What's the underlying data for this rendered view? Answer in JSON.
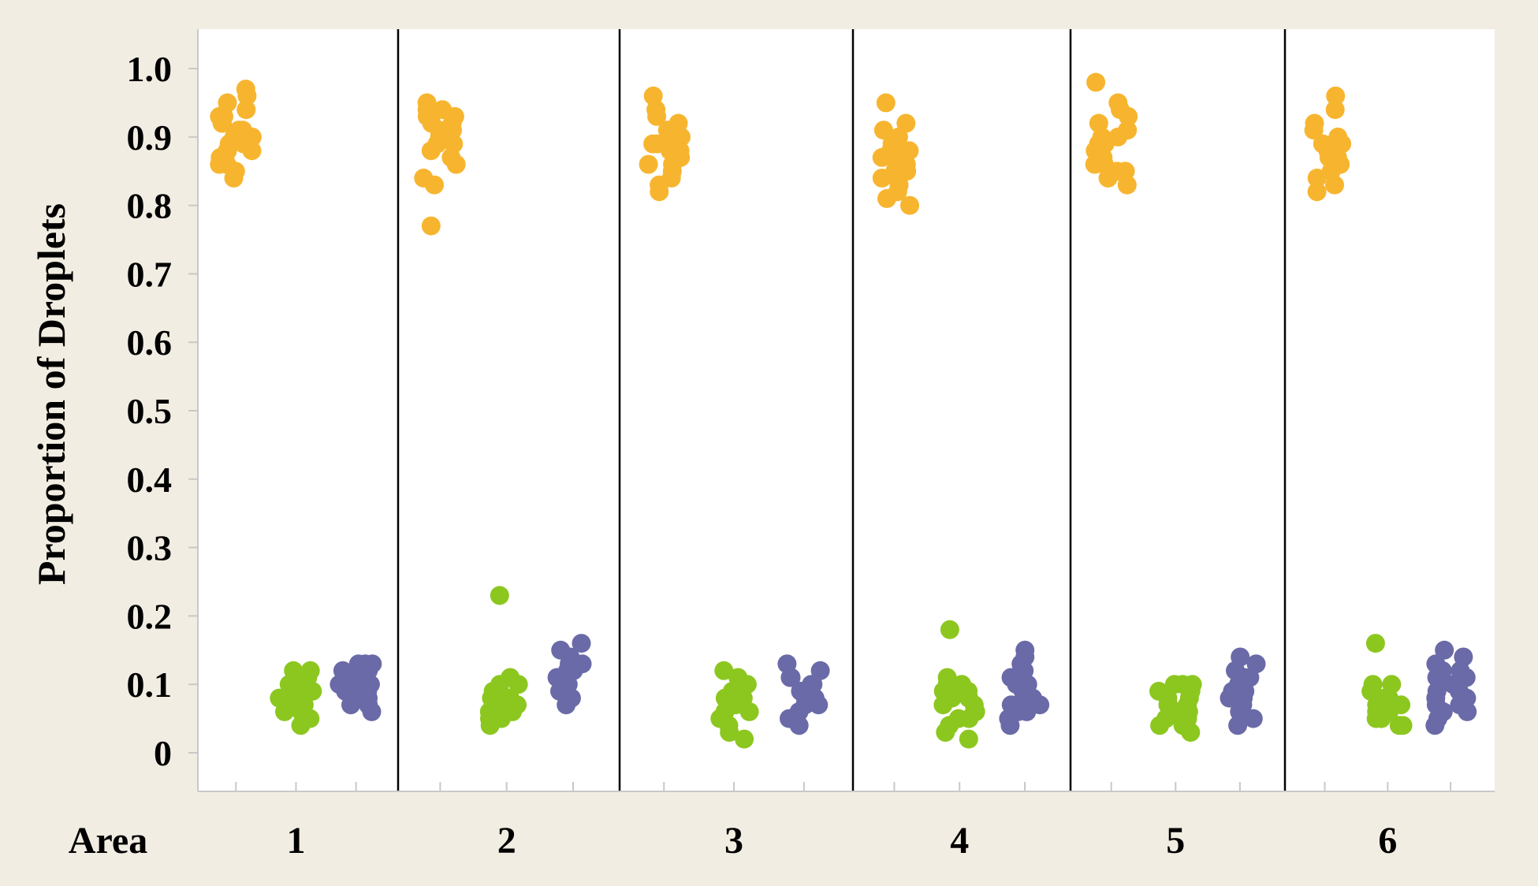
{
  "chart_data": {
    "type": "scatter",
    "title": "",
    "ylabel": "Proportion of Droplets",
    "xlabel": "Area",
    "ylim": [
      -0.06,
      1.06
    ],
    "yticks": [
      "0",
      "0.1",
      "0.2",
      "0.3",
      "0.4",
      "0.5",
      "0.6",
      "0.7",
      "0.8",
      "0.9",
      "1.0"
    ],
    "grid": false,
    "legend": "none",
    "panels": [
      "1",
      "2",
      "3",
      "4",
      "5",
      "6"
    ],
    "groups_per_panel": 3,
    "series": [
      {
        "color": "#f7b52f",
        "group_index": 0,
        "panels": [
          [
            0.84,
            0.85,
            0.86,
            0.86,
            0.87,
            0.87,
            0.88,
            0.88,
            0.88,
            0.89,
            0.89,
            0.9,
            0.9,
            0.9,
            0.91,
            0.91,
            0.92,
            0.92,
            0.93,
            0.93,
            0.94,
            0.95,
            0.96,
            0.97
          ],
          [
            0.77,
            0.83,
            0.84,
            0.86,
            0.87,
            0.88,
            0.89,
            0.89,
            0.9,
            0.9,
            0.91,
            0.91,
            0.92,
            0.92,
            0.93,
            0.93,
            0.94,
            0.94,
            0.95
          ],
          [
            0.82,
            0.83,
            0.84,
            0.85,
            0.86,
            0.86,
            0.87,
            0.87,
            0.88,
            0.88,
            0.89,
            0.89,
            0.9,
            0.9,
            0.91,
            0.91,
            0.92,
            0.93,
            0.94,
            0.96
          ],
          [
            0.8,
            0.81,
            0.82,
            0.83,
            0.84,
            0.85,
            0.85,
            0.86,
            0.86,
            0.87,
            0.87,
            0.88,
            0.88,
            0.89,
            0.9,
            0.91,
            0.92,
            0.95
          ],
          [
            0.83,
            0.84,
            0.85,
            0.85,
            0.86,
            0.86,
            0.87,
            0.87,
            0.88,
            0.88,
            0.89,
            0.89,
            0.9,
            0.9,
            0.91,
            0.92,
            0.93,
            0.94,
            0.95,
            0.98
          ],
          [
            0.82,
            0.83,
            0.84,
            0.85,
            0.86,
            0.86,
            0.87,
            0.87,
            0.88,
            0.88,
            0.89,
            0.89,
            0.9,
            0.91,
            0.92,
            0.94,
            0.96
          ]
        ]
      },
      {
        "color": "#8cc71f",
        "group_index": 1,
        "panels": [
          [
            0.04,
            0.05,
            0.06,
            0.06,
            0.07,
            0.07,
            0.08,
            0.08,
            0.08,
            0.09,
            0.09,
            0.09,
            0.1,
            0.1,
            0.1,
            0.11,
            0.11,
            0.12,
            0.12
          ],
          [
            0.04,
            0.05,
            0.05,
            0.06,
            0.06,
            0.07,
            0.07,
            0.07,
            0.08,
            0.08,
            0.08,
            0.09,
            0.09,
            0.1,
            0.1,
            0.11,
            0.23
          ],
          [
            0.02,
            0.03,
            0.04,
            0.05,
            0.06,
            0.06,
            0.07,
            0.07,
            0.08,
            0.08,
            0.09,
            0.09,
            0.1,
            0.1,
            0.11,
            0.12
          ],
          [
            0.02,
            0.03,
            0.04,
            0.05,
            0.05,
            0.06,
            0.06,
            0.07,
            0.07,
            0.08,
            0.08,
            0.09,
            0.09,
            0.1,
            0.1,
            0.11,
            0.18
          ],
          [
            0.03,
            0.04,
            0.04,
            0.05,
            0.05,
            0.06,
            0.06,
            0.07,
            0.07,
            0.07,
            0.08,
            0.08,
            0.09,
            0.09,
            0.1,
            0.1,
            0.1
          ],
          [
            0.04,
            0.04,
            0.05,
            0.05,
            0.06,
            0.06,
            0.07,
            0.07,
            0.08,
            0.08,
            0.09,
            0.1,
            0.1,
            0.16
          ]
        ]
      },
      {
        "color": "#6a6aa8",
        "group_index": 2,
        "panels": [
          [
            0.06,
            0.07,
            0.07,
            0.08,
            0.08,
            0.09,
            0.09,
            0.1,
            0.1,
            0.1,
            0.11,
            0.11,
            0.12,
            0.12,
            0.13,
            0.13,
            0.13
          ],
          [
            0.07,
            0.08,
            0.08,
            0.09,
            0.09,
            0.1,
            0.1,
            0.11,
            0.11,
            0.12,
            0.12,
            0.13,
            0.13,
            0.14,
            0.15,
            0.16
          ],
          [
            0.04,
            0.05,
            0.06,
            0.07,
            0.07,
            0.08,
            0.08,
            0.09,
            0.09,
            0.1,
            0.1,
            0.11,
            0.11,
            0.12,
            0.13
          ],
          [
            0.04,
            0.05,
            0.06,
            0.06,
            0.07,
            0.07,
            0.08,
            0.08,
            0.09,
            0.09,
            0.1,
            0.1,
            0.11,
            0.12,
            0.13,
            0.14,
            0.15
          ],
          [
            0.04,
            0.05,
            0.06,
            0.07,
            0.07,
            0.08,
            0.08,
            0.09,
            0.09,
            0.1,
            0.1,
            0.11,
            0.11,
            0.12,
            0.12,
            0.13,
            0.14
          ],
          [
            0.04,
            0.05,
            0.06,
            0.06,
            0.07,
            0.07,
            0.08,
            0.08,
            0.09,
            0.09,
            0.1,
            0.1,
            0.11,
            0.11,
            0.12,
            0.12,
            0.13,
            0.14,
            0.15
          ]
        ]
      }
    ]
  }
}
